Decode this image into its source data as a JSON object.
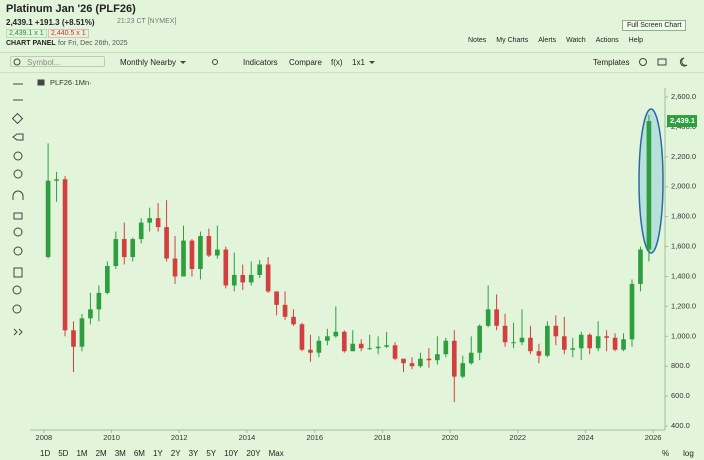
{
  "header": {
    "title": "Platinum Jan '26 (PLF26)",
    "quote": "2,439.1 +191.3 (+8.51%)",
    "time": "21:23 CT [NYMEX]",
    "panel_label": "CHART PANEL",
    "panel_date": "for Fri, Dec 26th, 2025",
    "bid": "2,439.1 x 1",
    "ask": "2,440.5 x 1",
    "fullscreen": "Full Screen Chart"
  },
  "links": [
    "Notes",
    "My Charts",
    "Alerts",
    "Watch",
    "Actions",
    "Help"
  ],
  "toolbar": {
    "symbol": "Symbol...",
    "period": "Monthly Nearby",
    "indicators": "Indicators",
    "compare": "Compare",
    "fx": "f(x)",
    "layout": "1x1",
    "templates": "Templates"
  },
  "chart_data": {
    "type": "candlestick",
    "legend_label": "PLF26·1Mn·",
    "up_color": "#2e9e3e",
    "down_color": "#d23f3f",
    "last_price": {
      "value": 2439.1,
      "label": "2,439.1"
    },
    "xlim": [
      2007.59,
      2026.35
    ],
    "xticks": [
      2008,
      2010,
      2012,
      2014,
      2016,
      2018,
      2020,
      2022,
      2024,
      2026
    ],
    "ylim": [
      400,
      2600
    ],
    "yticks": [
      {
        "value": 400,
        "label": "400.0"
      },
      {
        "value": 600,
        "label": "600.0"
      },
      {
        "value": 800,
        "label": "800.0"
      },
      {
        "value": 1000,
        "label": "1,000.0"
      },
      {
        "value": 1200,
        "label": "1,200.0"
      },
      {
        "value": 1400,
        "label": "1,400.0"
      },
      {
        "value": 1600,
        "label": "1,600.0"
      },
      {
        "value": 1800,
        "label": "1,800.0"
      },
      {
        "value": 2000,
        "label": "2,000.0"
      },
      {
        "value": 2200,
        "label": "2,200.0"
      },
      {
        "value": 2400,
        "label": "2,400.0"
      },
      {
        "value": 2600,
        "label": "2,600.0"
      }
    ],
    "grid": false,
    "x": [
      2008.125,
      2008.375,
      2008.625,
      2008.875,
      2009.125,
      2009.375,
      2009.625,
      2009.875,
      2010.125,
      2010.375,
      2010.625,
      2010.875,
      2011.125,
      2011.375,
      2011.625,
      2011.875,
      2012.125,
      2012.375,
      2012.625,
      2012.875,
      2013.125,
      2013.375,
      2013.625,
      2013.875,
      2014.125,
      2014.375,
      2014.625,
      2014.875,
      2015.125,
      2015.375,
      2015.625,
      2015.875,
      2016.125,
      2016.375,
      2016.625,
      2016.875,
      2017.125,
      2017.375,
      2017.625,
      2017.875,
      2018.125,
      2018.375,
      2018.625,
      2018.875,
      2019.125,
      2019.375,
      2019.625,
      2019.875,
      2020.125,
      2020.375,
      2020.625,
      2020.875,
      2021.125,
      2021.375,
      2021.625,
      2021.875,
      2022.125,
      2022.375,
      2022.625,
      2022.875,
      2023.125,
      2023.375,
      2023.625,
      2023.875,
      2024.125,
      2024.375,
      2024.625,
      2024.875,
      2025.125,
      2025.375,
      2025.625,
      2025.875
    ],
    "open": [
      1530,
      2040,
      2050,
      1040,
      930,
      1120,
      1180,
      1290,
      1470,
      1650,
      1530,
      1650,
      1760,
      1790,
      1730,
      1520,
      1400,
      1640,
      1450,
      1670,
      1540,
      1580,
      1340,
      1410,
      1360,
      1410,
      1480,
      1300,
      1210,
      1130,
      1080,
      910,
      890,
      970,
      1000,
      1030,
      900,
      950,
      920,
      920,
      930,
      940,
      850,
      820,
      800,
      850,
      840,
      880,
      970,
      730,
      820,
      890,
      1070,
      1180,
      1070,
      960,
      960,
      990,
      900,
      870,
      1070,
      1000,
      910,
      920,
      1010,
      920,
      1000,
      990,
      910,
      980,
      1350,
      1580
    ],
    "high": [
      2290,
      2100,
      2070,
      1100,
      1150,
      1290,
      1340,
      1500,
      1700,
      1760,
      1660,
      1790,
      1860,
      1890,
      1910,
      1670,
      1740,
      1650,
      1700,
      1720,
      1740,
      1600,
      1560,
      1480,
      1500,
      1510,
      1530,
      1300,
      1300,
      1180,
      1090,
      1010,
      1000,
      1050,
      1200,
      1040,
      1040,
      980,
      1010,
      1000,
      1030,
      960,
      850,
      860,
      890,
      920,
      1000,
      990,
      1040,
      870,
      1000,
      1080,
      1340,
      1280,
      1150,
      1090,
      1180,
      1070,
      950,
      1100,
      1140,
      1130,
      990,
      1030,
      1020,
      1100,
      1040,
      1020,
      1020,
      1380,
      1600,
      2480
    ],
    "low": [
      1520,
      1900,
      1000,
      760,
      900,
      1080,
      1100,
      1280,
      1450,
      1480,
      1500,
      1620,
      1700,
      1700,
      1500,
      1350,
      1400,
      1400,
      1380,
      1530,
      1520,
      1320,
      1300,
      1310,
      1340,
      1390,
      1290,
      1140,
      1110,
      1070,
      900,
      830,
      860,
      940,
      990,
      890,
      900,
      900,
      910,
      880,
      920,
      840,
      760,
      780,
      790,
      790,
      810,
      860,
      560,
      720,
      810,
      840,
      1060,
      1040,
      930,
      920,
      940,
      880,
      820,
      860,
      940,
      880,
      860,
      840,
      880,
      900,
      900,
      900,
      900,
      930,
      1300,
      1500
    ],
    "close": [
      2040,
      2050,
      1040,
      930,
      1120,
      1180,
      1290,
      1470,
      1650,
      1530,
      1650,
      1760,
      1790,
      1730,
      1520,
      1400,
      1640,
      1450,
      1670,
      1540,
      1580,
      1340,
      1410,
      1360,
      1410,
      1480,
      1300,
      1210,
      1130,
      1080,
      910,
      890,
      970,
      1000,
      1030,
      900,
      950,
      920,
      920,
      930,
      940,
      850,
      820,
      800,
      850,
      840,
      880,
      970,
      730,
      820,
      890,
      1070,
      1180,
      1070,
      960,
      960,
      990,
      900,
      870,
      1070,
      1000,
      910,
      920,
      1010,
      920,
      1000,
      990,
      910,
      980,
      1350,
      1580,
      2439.1
    ]
  },
  "timeframes": [
    "1D",
    "5D",
    "1M",
    "2M",
    "3M",
    "6M",
    "1Y",
    "2Y",
    "3Y",
    "5Y",
    "10Y",
    "20Y",
    "Max"
  ],
  "scale_options": [
    "%",
    "log"
  ]
}
